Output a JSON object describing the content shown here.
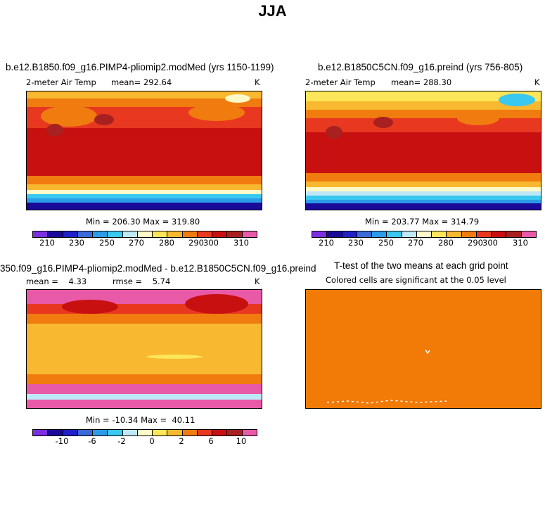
{
  "main_title": "JJA",
  "panels": [
    {
      "id": "p1",
      "title": "b.e12.B1850.f09_g16.PIMP4-pliomip2.modMed (yrs 1150-1199)",
      "variable": "2-meter Air Temp",
      "mean_text": "mean= 292.64",
      "units": "K",
      "minmax": "Min = 206.30 Max = 319.80",
      "cbar_ticks": [
        "210",
        "230",
        "250",
        "270",
        "280",
        "290",
        "300",
        "310"
      ]
    },
    {
      "id": "p2",
      "title": "b.e12.B1850C5CN.f09_g16.preind (yrs 756-805)",
      "variable": "2-meter Air Temp",
      "mean_text": "mean= 288.30",
      "units": "K",
      "minmax": "Min = 203.77 Max = 314.79",
      "cbar_ticks": [
        "210",
        "230",
        "250",
        "270",
        "280",
        "290",
        "300",
        "310"
      ]
    },
    {
      "id": "p3",
      "title": "350.f09_g16.PIMP4-pliomip2.modMed - b.e12.B1850C5CN.f09_g16.preind",
      "mean_text": "mean =    4.33",
      "rmse_text": "rmse =    5.74",
      "units": "K",
      "minmax": "Min = -10.34 Max =  40.11",
      "cbar_ticks": [
        "-10",
        "-6",
        "-2",
        "0",
        "2",
        "6",
        "10"
      ]
    },
    {
      "id": "p4",
      "title": "T-test of the two means at each grid point",
      "subtitle": "Colored cells are significant at the 0.05 level"
    }
  ],
  "colors": {
    "temp_scale": [
      "#7b2fe0",
      "#1a0a9a",
      "#2020c8",
      "#3a6ad8",
      "#2c9be8",
      "#38c8f0",
      "#bfe8f6",
      "#fff8c8",
      "#fde65a",
      "#f8b830",
      "#f07c10",
      "#e83820",
      "#c81010",
      "#a82020",
      "#e85aa8"
    ],
    "diff_scale": [
      "#7b2fe0",
      "#1a0a9a",
      "#2020c8",
      "#3a6ad8",
      "#2c9be8",
      "#38c8f0",
      "#bfe8f6",
      "#fff8c8",
      "#fde65a",
      "#f8b830",
      "#f07c10",
      "#e83820",
      "#c81010",
      "#a82020",
      "#e85aa8"
    ],
    "ttest_fill": "#f27a06"
  }
}
